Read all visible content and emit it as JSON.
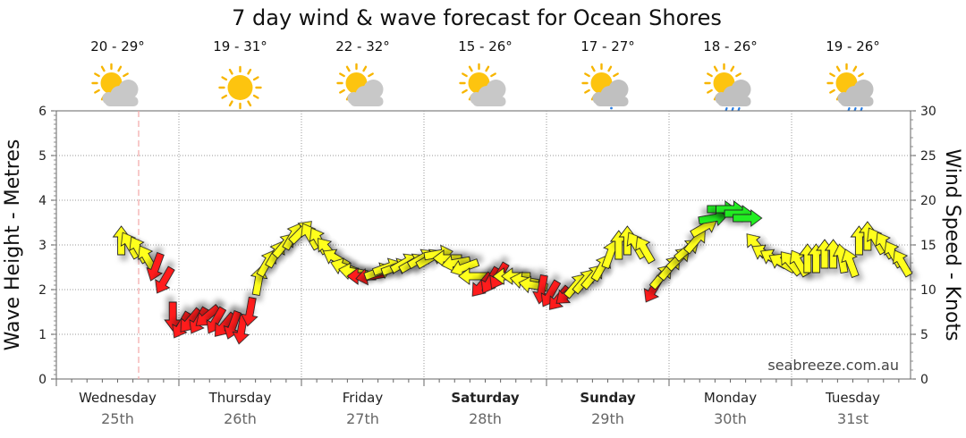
{
  "chart_data": {
    "type": "line",
    "title": "7 day wind & wave forecast for Ocean Shores",
    "watermark": "seabreeze.com.au",
    "ylabel_left": "Wave Height - Metres",
    "ylabel_right": "Wind Speed - Knots",
    "ylim_left": [
      0,
      6
    ],
    "ylim_right": [
      0,
      30
    ],
    "y_ticks_left": [
      "0",
      "1",
      "2",
      "3",
      "4",
      "5",
      "6"
    ],
    "y_ticks_right": [
      "0",
      "5",
      "10",
      "15",
      "20",
      "25",
      "30"
    ],
    "grid": true,
    "days": [
      {
        "name": "Wednesday",
        "date": "25th",
        "temp": "20 - 29°",
        "weather": "sun-cloud-icon",
        "bold": false
      },
      {
        "name": "Thursday",
        "date": "26th",
        "temp": "19 - 31°",
        "weather": "sun-icon",
        "bold": false
      },
      {
        "name": "Friday",
        "date": "27th",
        "temp": "22 - 32°",
        "weather": "sun-cloud-icon",
        "bold": false
      },
      {
        "name": "Saturday",
        "date": "28th",
        "temp": "15 - 26°",
        "weather": "sun-cloud-icon",
        "bold": true
      },
      {
        "name": "Sunday",
        "date": "29th",
        "temp": "17 - 27°",
        "weather": "sun-cloud-showers-icon",
        "bold": true
      },
      {
        "name": "Monday",
        "date": "30th",
        "temp": "18 - 26°",
        "weather": "sun-cloud-rain-icon",
        "bold": false
      },
      {
        "name": "Tuesday",
        "date": "31st",
        "temp": "19 - 26°",
        "weather": "sun-cloud-rain-icon",
        "bold": false
      }
    ],
    "colors": {
      "red": "#ff1a1a",
      "yellow": "#ffff1a",
      "green": "#22ee22",
      "now_line": "#f4a6a6",
      "grid": "#999999"
    },
    "series": [
      {
        "name": "",
        "marker": "wind-arrow",
        "x_day": [
          0.53,
          0.6,
          0.67,
          0.74,
          0.81,
          0.88,
          0.95,
          1.02,
          1.09,
          1.16,
          1.23,
          1.3,
          1.37,
          1.44,
          1.51,
          1.58,
          1.65,
          1.72,
          1.79,
          1.86,
          1.93,
          2.0,
          2.07,
          2.14,
          2.21,
          2.28,
          2.35,
          2.42,
          2.49,
          2.56,
          2.63,
          2.7,
          2.77,
          2.84,
          2.91,
          2.98,
          3.05,
          3.12,
          3.19,
          3.26,
          3.33,
          3.4,
          3.47,
          3.54,
          3.61,
          3.68,
          3.75,
          3.82,
          3.89,
          3.96,
          4.03,
          4.1,
          4.17,
          4.24,
          4.31,
          4.38,
          4.45,
          4.52,
          4.59,
          4.66,
          4.73,
          4.8,
          4.87,
          4.94,
          5.01,
          5.08,
          5.15,
          5.22,
          5.29,
          5.36,
          5.43,
          5.5,
          5.57,
          5.64,
          5.71,
          5.78,
          5.85,
          5.92,
          5.99,
          6.06,
          6.13,
          6.2,
          6.27,
          6.34,
          6.41,
          6.48,
          6.55,
          6.62,
          6.69,
          6.76,
          6.83,
          6.9
        ],
        "wind_knots": [
          15,
          15,
          15,
          13,
          11,
          10,
          6,
          6,
          7,
          7,
          7,
          6,
          6,
          6,
          6,
          8,
          12,
          14,
          15,
          16,
          17,
          16,
          16,
          16,
          15,
          13,
          13,
          13,
          11,
          11,
          11,
          11,
          12,
          12,
          12,
          13,
          13,
          13,
          13,
          12,
          11,
          10,
          10,
          11,
          12,
          12,
          12,
          12,
          12,
          12,
          11,
          10,
          10,
          11,
          12,
          12,
          13,
          15,
          16,
          16,
          16,
          16,
          10,
          11,
          12,
          13,
          14,
          15,
          16,
          18,
          19,
          19,
          19,
          18,
          14,
          13,
          13,
          13,
          13,
          13,
          13,
          14,
          14,
          14,
          13,
          13,
          16,
          16,
          16,
          15,
          14,
          13
        ],
        "wave_m": [
          3.1,
          3.0,
          2.9,
          2.7,
          2.5,
          2.2,
          1.4,
          1.2,
          1.3,
          1.3,
          1.4,
          1.3,
          1.2,
          1.2,
          1.1,
          1.5,
          2.2,
          2.6,
          2.8,
          3.0,
          3.2,
          3.3,
          3.2,
          3.1,
          2.9,
          2.7,
          2.5,
          2.4,
          2.3,
          2.3,
          2.4,
          2.5,
          2.5,
          2.6,
          2.6,
          2.7,
          2.7,
          2.8,
          2.7,
          2.6,
          2.5,
          2.3,
          2.1,
          2.2,
          2.3,
          2.3,
          2.3,
          2.2,
          2.1,
          2.0,
          1.9,
          1.8,
          1.9,
          2.1,
          2.2,
          2.3,
          2.5,
          2.8,
          3.0,
          3.1,
          3.0,
          2.9,
          2.0,
          2.3,
          2.5,
          2.7,
          2.9,
          3.1,
          3.4,
          3.6,
          3.8,
          3.8,
          3.7,
          3.6,
          3.0,
          2.8,
          2.7,
          2.6,
          2.6,
          2.6,
          2.7,
          2.7,
          2.8,
          2.8,
          2.7,
          2.6,
          3.1,
          3.2,
          3.1,
          3.0,
          2.8,
          2.6
        ],
        "color": [
          "yellow",
          "yellow",
          "yellow",
          "yellow",
          "red",
          "red",
          "red",
          "red",
          "red",
          "red",
          "red",
          "red",
          "red",
          "red",
          "red",
          "red",
          "yellow",
          "yellow",
          "yellow",
          "yellow",
          "yellow",
          "yellow",
          "yellow",
          "yellow",
          "yellow",
          "yellow",
          "yellow",
          "yellow",
          "red",
          "red",
          "yellow",
          "yellow",
          "yellow",
          "yellow",
          "yellow",
          "yellow",
          "yellow",
          "yellow",
          "yellow",
          "yellow",
          "yellow",
          "yellow",
          "red",
          "red",
          "red",
          "yellow",
          "yellow",
          "yellow",
          "yellow",
          "red",
          "red",
          "red",
          "red",
          "yellow",
          "yellow",
          "yellow",
          "yellow",
          "yellow",
          "yellow",
          "yellow",
          "yellow",
          "yellow",
          "red",
          "yellow",
          "yellow",
          "yellow",
          "yellow",
          "yellow",
          "yellow",
          "green",
          "green",
          "green",
          "green",
          "green",
          "yellow",
          "yellow",
          "yellow",
          "yellow",
          "yellow",
          "yellow",
          "yellow",
          "yellow",
          "yellow",
          "yellow",
          "yellow",
          "yellow",
          "yellow",
          "yellow",
          "yellow",
          "yellow",
          "yellow",
          "yellow"
        ],
        "dir_deg": [
          0,
          -30,
          -30,
          -30,
          -160,
          -150,
          -180,
          -150,
          -140,
          -150,
          -130,
          -150,
          -140,
          -160,
          -170,
          -170,
          10,
          30,
          30,
          40,
          30,
          45,
          -30,
          -30,
          -40,
          -60,
          -70,
          -80,
          -90,
          -100,
          70,
          70,
          70,
          60,
          60,
          60,
          60,
          80,
          -90,
          -100,
          -110,
          -90,
          -140,
          -150,
          -150,
          -90,
          -90,
          -80,
          -80,
          -170,
          -150,
          -140,
          -130,
          40,
          40,
          40,
          30,
          20,
          0,
          0,
          -30,
          -30,
          -150,
          40,
          40,
          45,
          50,
          40,
          60,
          80,
          90,
          90,
          90,
          90,
          -40,
          -60,
          -60,
          -60,
          -40,
          -30,
          0,
          0,
          0,
          0,
          -10,
          -20,
          0,
          0,
          -30,
          -30,
          -30,
          -30
        ]
      }
    ]
  }
}
